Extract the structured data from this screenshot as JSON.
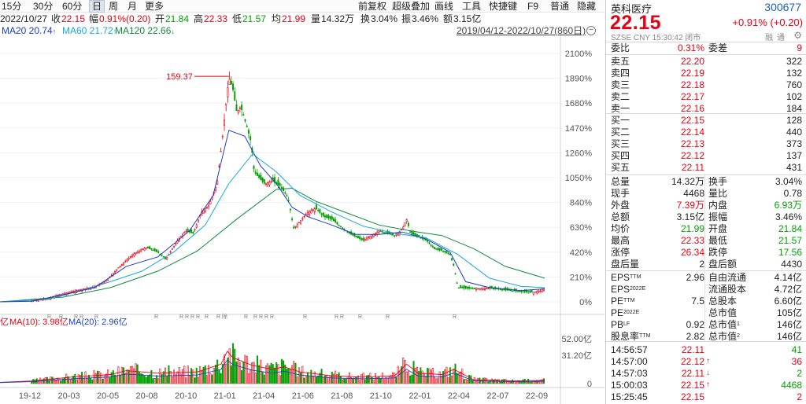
{
  "toolbar": {
    "left": [
      "15分",
      "30分",
      "60分",
      "日",
      "周",
      "月",
      "更多"
    ],
    "active": "日",
    "right": [
      "前复权",
      "超级叠加",
      "画线",
      "工具",
      "快捷键",
      "F9",
      "普通",
      "隐藏"
    ]
  },
  "info1": {
    "date": "2022/10/27",
    "close_label": "收",
    "close": "22.15",
    "amp_label": "幅",
    "amp": "0.91%(0.20)",
    "open_label": "开",
    "open": "21.84",
    "high_label": "高",
    "high": "22.33",
    "low_label": "低",
    "low": "21.57",
    "avg_label": "均",
    "avg": "21.99",
    "vol_label": "量",
    "vol": "14.32万",
    "turn_label": "换",
    "turn": "3.04%",
    "swing_label": "振",
    "swing": "3.46%",
    "amount_label": "额",
    "amount": "3.15亿"
  },
  "info2": {
    "ma20": "MA20 20.74",
    "ma60": "MA60 21.72",
    "ma120": "MA120 22.66",
    "range": "2019/04/12-2022/10/27(860日)"
  },
  "vol_legend": {
    "prefix": "亿",
    "ma10": "MA(10): 3.98亿",
    "ma20": "MA(20): 2.96亿"
  },
  "chart_data": [
    {
      "type": "line",
      "name": "price",
      "y_axis_labels": [
        "2100%",
        "1890%",
        "1680%",
        "1470%",
        "1260%",
        "1050%",
        "840%",
        "630%",
        "420%",
        "210%",
        "0%"
      ],
      "ylim": [
        0,
        2100
      ],
      "x_tick_labels": [
        "19-12",
        "20-03",
        "20-05",
        "20-08",
        "20-10",
        "21-01",
        "21-04",
        "21-06",
        "21-08",
        "21-10",
        "22-01",
        "22-04",
        "22-07",
        "22-09"
      ],
      "peak_label": "159.37",
      "rights_marks": [
        "R",
        "R",
        "R R",
        "R",
        "R",
        "R R",
        "R R",
        "R",
        "R 除",
        "R",
        "R R R",
        "R",
        "R",
        "R R",
        "R",
        "R",
        "R"
      ],
      "series": [
        {
          "name": "MA20",
          "color": "#1a3ec8"
        },
        {
          "name": "MA60",
          "color": "#18a8d8"
        },
        {
          "name": "MA120",
          "color": "#0f8a3c"
        }
      ],
      "path_points": [
        [
          0,
          0
        ],
        [
          30,
          1
        ],
        [
          40,
          10
        ],
        [
          60,
          30
        ],
        [
          80,
          70
        ],
        [
          100,
          100
        ],
        [
          120,
          130
        ],
        [
          135,
          180
        ],
        [
          150,
          290
        ],
        [
          170,
          410
        ],
        [
          185,
          460
        ],
        [
          200,
          420
        ],
        [
          210,
          360
        ],
        [
          225,
          520
        ],
        [
          235,
          600
        ],
        [
          245,
          580
        ],
        [
          255,
          760
        ],
        [
          265,
          820
        ],
        [
          275,
          1000
        ],
        [
          282,
          1400
        ],
        [
          286,
          1650
        ],
        [
          290,
          1900
        ],
        [
          295,
          1800
        ],
        [
          300,
          1600
        ],
        [
          305,
          1650
        ],
        [
          312,
          1500
        ],
        [
          318,
          1350
        ],
        [
          322,
          1100
        ],
        [
          328,
          1050
        ],
        [
          335,
          1000
        ],
        [
          345,
          1020
        ],
        [
          355,
          980
        ],
        [
          365,
          880
        ],
        [
          372,
          620
        ],
        [
          380,
          680
        ],
        [
          390,
          760
        ],
        [
          400,
          790
        ],
        [
          410,
          720
        ],
        [
          420,
          700
        ],
        [
          430,
          640
        ],
        [
          440,
          590
        ],
        [
          450,
          550
        ],
        [
          460,
          520
        ],
        [
          470,
          560
        ],
        [
          480,
          600
        ],
        [
          490,
          580
        ],
        [
          500,
          560
        ],
        [
          510,
          620
        ],
        [
          515,
          700
        ],
        [
          520,
          580
        ],
        [
          530,
          550
        ],
        [
          540,
          520
        ],
        [
          550,
          450
        ],
        [
          560,
          430
        ],
        [
          570,
          400
        ],
        [
          575,
          300
        ],
        [
          580,
          120
        ],
        [
          600,
          110
        ],
        [
          620,
          115
        ],
        [
          640,
          100
        ],
        [
          660,
          85
        ],
        [
          675,
          80
        ],
        [
          685,
          95
        ],
        [
          690,
          110
        ]
      ],
      "ma20_points": [
        [
          0,
          0
        ],
        [
          40,
          5
        ],
        [
          80,
          60
        ],
        [
          120,
          120
        ],
        [
          160,
          300
        ],
        [
          200,
          380
        ],
        [
          240,
          600
        ],
        [
          270,
          900
        ],
        [
          290,
          1450
        ],
        [
          310,
          1400
        ],
        [
          330,
          1150
        ],
        [
          350,
          1000
        ],
        [
          370,
          800
        ],
        [
          390,
          720
        ],
        [
          420,
          650
        ],
        [
          450,
          570
        ],
        [
          480,
          570
        ],
        [
          510,
          590
        ],
        [
          540,
          530
        ],
        [
          570,
          420
        ],
        [
          590,
          170
        ],
        [
          620,
          120
        ],
        [
          660,
          95
        ],
        [
          690,
          110
        ]
      ],
      "ma60_points": [
        [
          0,
          0
        ],
        [
          60,
          20
        ],
        [
          100,
          90
        ],
        [
          140,
          170
        ],
        [
          180,
          260
        ],
        [
          220,
          420
        ],
        [
          260,
          650
        ],
        [
          290,
          1000
        ],
        [
          320,
          1250
        ],
        [
          350,
          1100
        ],
        [
          380,
          900
        ],
        [
          420,
          760
        ],
        [
          460,
          640
        ],
        [
          500,
          580
        ],
        [
          540,
          540
        ],
        [
          580,
          400
        ],
        [
          620,
          200
        ],
        [
          660,
          130
        ],
        [
          690,
          120
        ]
      ],
      "ma120_points": [
        [
          0,
          0
        ],
        [
          80,
          40
        ],
        [
          140,
          120
        ],
        [
          200,
          260
        ],
        [
          250,
          430
        ],
        [
          300,
          700
        ],
        [
          350,
          950
        ],
        [
          370,
          960
        ],
        [
          400,
          850
        ],
        [
          440,
          750
        ],
        [
          480,
          650
        ],
        [
          520,
          600
        ],
        [
          560,
          560
        ],
        [
          600,
          450
        ],
        [
          640,
          300
        ],
        [
          690,
          200
        ]
      ]
    },
    {
      "type": "bar",
      "name": "volume",
      "y_axis_labels": [
        "52.00亿",
        "31.20亿",
        "0"
      ],
      "ylim": [
        0,
        52
      ]
    }
  ],
  "panel": {
    "name": "英科医疗",
    "code": "300677",
    "price": "22.15",
    "change": "+0.91% (+0.20)",
    "meta": "SZSE  CNY  15:30:42  闭市",
    "flags": "融通",
    "ratio": {
      "l1": "委比",
      "v1": "0.31%",
      "l2": "委差",
      "v2": "9"
    },
    "asks": [
      {
        "label": "卖五",
        "price": "22.20",
        "vol": "322"
      },
      {
        "label": "卖四",
        "price": "22.19",
        "vol": "132"
      },
      {
        "label": "卖三",
        "price": "22.18",
        "vol": "760"
      },
      {
        "label": "卖二",
        "price": "22.17",
        "vol": "102"
      },
      {
        "label": "卖一",
        "price": "22.16",
        "vol": "184"
      }
    ],
    "bids": [
      {
        "label": "买一",
        "price": "22.15",
        "vol": "128"
      },
      {
        "label": "买二",
        "price": "22.14",
        "vol": "440"
      },
      {
        "label": "买三",
        "price": "22.13",
        "vol": "373"
      },
      {
        "label": "买四",
        "price": "22.12",
        "vol": "137"
      },
      {
        "label": "买五",
        "price": "22.11",
        "vol": "431"
      }
    ],
    "stats1": [
      {
        "l1": "总量",
        "v1": "14.32万",
        "l2": "换手",
        "v2": "3.04%",
        "c1": "dark",
        "c2": "dark"
      },
      {
        "l1": "现手",
        "v1": "4468",
        "l2": "量比",
        "v2": "0.78",
        "c1": "dark",
        "c2": "dark"
      },
      {
        "l1": "外盘",
        "v1": "7.39万",
        "l2": "内盘",
        "v2": "6.93万",
        "c1": "red",
        "c2": "green"
      },
      {
        "l1": "总额",
        "v1": "3.15亿",
        "l2": "振幅",
        "v2": "3.46%",
        "c1": "dark",
        "c2": "dark"
      },
      {
        "l1": "均价",
        "v1": "21.99",
        "l2": "开盘",
        "v2": "21.84",
        "c1": "green",
        "c2": "green"
      },
      {
        "l1": "最高",
        "v1": "22.33",
        "l2": "最低",
        "v2": "21.57",
        "c1": "red",
        "c2": "green"
      },
      {
        "l1": "涨停",
        "v1": "26.34",
        "l2": "跌停",
        "v2": "17.56",
        "c1": "red",
        "c2": "green"
      },
      {
        "l1": "盘后量",
        "v1": "2",
        "l2": "盘后额",
        "v2": "4430",
        "c1": "dark",
        "c2": "dark"
      }
    ],
    "stats2": [
      {
        "l1": "EPS",
        "s1": "TTM",
        "v1": "2.96",
        "l2": "自由流通",
        "s2": "",
        "v2": "4.14亿"
      },
      {
        "l1": "EPS",
        "s1": "2022E",
        "v1": "",
        "l2": "流通股本",
        "s2": "",
        "v2": "4.72亿"
      },
      {
        "l1": "PE",
        "s1": "TTM",
        "v1": "7.5",
        "l2": "总股本",
        "s2": "",
        "v2": "6.60亿"
      },
      {
        "l1": "PE",
        "s1": "2022E",
        "v1": "",
        "l2": "总市值",
        "s2": "",
        "v2": "105亿"
      },
      {
        "l1": "PB",
        "s1": "LF",
        "v1": "0.92",
        "l2": "总市值",
        "s2": "1",
        "v2": "146亿"
      },
      {
        "l1": "股息率",
        "s1": "TTM",
        "v1": "2.82",
        "l2": "总市值",
        "s2": "2",
        "v2": "146亿"
      }
    ],
    "ticks": [
      {
        "time": "14:56:57",
        "price": "22.11",
        "arrow": "",
        "vol": "41",
        "pc": "red",
        "vc": "green"
      },
      {
        "time": "14:57:00",
        "price": "22.12",
        "arrow": "up",
        "vol": "36",
        "pc": "red",
        "vc": "red"
      },
      {
        "time": "14:57:03",
        "price": "22.11",
        "arrow": "down",
        "vol": "2",
        "pc": "red",
        "vc": "green"
      },
      {
        "time": "15:00:03",
        "price": "22.15",
        "arrow": "up",
        "vol": "4468",
        "pc": "red",
        "vc": "green"
      },
      {
        "time": "15:25:45",
        "price": "22.15",
        "arrow": "",
        "vol": "2",
        "pc": "red",
        "vc": "red"
      }
    ]
  }
}
